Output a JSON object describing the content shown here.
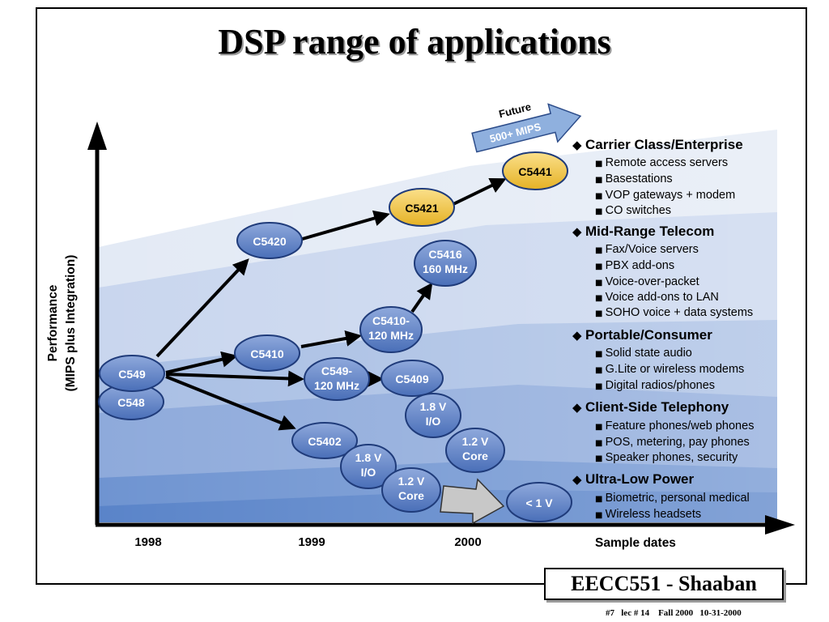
{
  "slide": {
    "title": "DSP range of applications",
    "course_label": "EECC551 - Shaaban",
    "footer": "#7   lec # 14    Fall 2000   10-31-2000"
  },
  "axes": {
    "y_label_line1": "Performance",
    "y_label_line2": "(MIPS plus Integration)",
    "x_label": "Sample dates",
    "x_ticks": [
      "1998",
      "1999",
      "2000"
    ]
  },
  "future": {
    "line1": "Future",
    "line2": "500+ MIPS"
  },
  "nodes": {
    "c548": "C548",
    "c549": "C549",
    "c5420": "C5420",
    "c5410": "C5410",
    "c549_120_l1": "C549-",
    "c549_120_l2": "120 MHz",
    "c5402": "C5402",
    "c5421": "C5421",
    "c5441": "C5441",
    "c5416_l1": "C5416",
    "c5416_l2": "160 MHz",
    "c5410_120_l1": "C5410-",
    "c5410_120_l2": "120 MHz",
    "c5409": "C5409",
    "io18a_l1": "1.8 V",
    "io18a_l2": "I/O",
    "core12a_l1": "1.2 V",
    "core12a_l2": "Core",
    "io18b_l1": "1.8 V",
    "io18b_l2": "I/O",
    "core12b_l1": "1.2 V",
    "core12b_l2": "Core",
    "lt1v": "< 1 V"
  },
  "categories": [
    {
      "title": "Carrier Class/Enterprise",
      "items": [
        "Remote access servers",
        "Basestations",
        "VOP gateways + modem",
        "CO switches"
      ]
    },
    {
      "title": "Mid-Range Telecom",
      "items": [
        "Fax/Voice servers",
        "PBX add-ons",
        "Voice-over-packet",
        "Voice add-ons to LAN",
        "SOHO voice + data systems"
      ]
    },
    {
      "title": "Portable/Consumer",
      "items": [
        "Solid state audio",
        "G.Lite or wireless modems",
        "Digital radios/phones"
      ]
    },
    {
      "title": "Client-Side Telephony",
      "items": [
        "Feature phones/web phones",
        "POS, metering, pay phones",
        "Speaker phones, security"
      ]
    },
    {
      "title": "Ultra-Low Power",
      "items": [
        "Biometric, personal medical",
        "Wireless headsets"
      ]
    }
  ],
  "colors": {
    "node_blue": "#5b7fc4",
    "node_gold": "#f2c53d",
    "band_light": "#dde6f4",
    "band_dark": "#4f7bc6",
    "future_arrow": "#8fb0de"
  }
}
